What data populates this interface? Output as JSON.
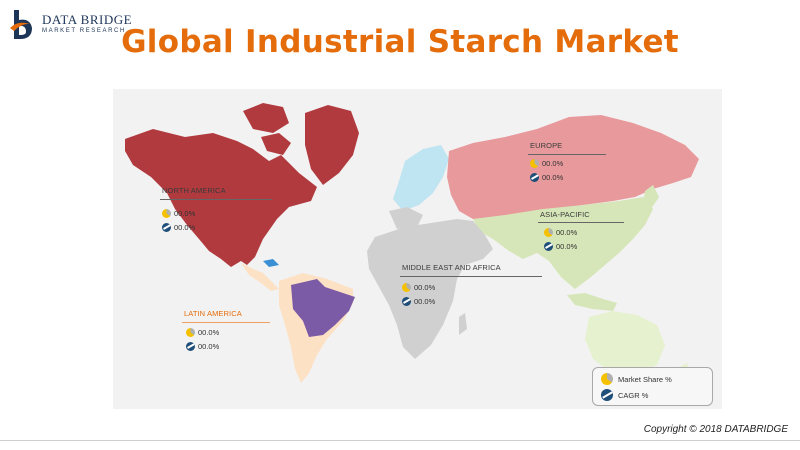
{
  "brand": {
    "name": "DATA BRIDGE",
    "tagline": "MARKET RESEARCH",
    "logo_colors": {
      "primary": "#1d3557",
      "accent": "#e46c0a"
    }
  },
  "title": "Global Industrial Starch Market",
  "regions": [
    {
      "key": "north_america",
      "name": "NORTH AMERICA",
      "market_share": "00.0%",
      "cagr": "00.0%",
      "color": "#b13a3f"
    },
    {
      "key": "europe",
      "name": "EUROPE",
      "market_share": "00.0%",
      "cagr": "00.0%",
      "color": "#e8999c"
    },
    {
      "key": "asia_pacific",
      "name": "ASIA-PACIFIC",
      "market_share": "00.0%",
      "cagr": "00.0%",
      "color": "#d6e6b8"
    },
    {
      "key": "middle_east_africa",
      "name": "MIDDLE EAST AND AFRICA",
      "market_share": "00.0%",
      "cagr": "00.0%",
      "color": "#d0d0d0"
    },
    {
      "key": "latin_america",
      "name": "LATIN AMERICA",
      "market_share": "00.0%",
      "cagr": "00.0%",
      "color": "#fde1c4",
      "highlight_color": "#7b5aa6"
    }
  ],
  "legend": {
    "market_share_label": "Market Share %",
    "cagr_label": "CAGR %"
  },
  "copyright": "Copyright © 2018 DATABRIDGE",
  "colors": {
    "title": "#e46c0a",
    "map_background": "#f2f2f2",
    "scandinavia": "#bfe4f2",
    "australia": "#e6f1cf",
    "share_icon": "#f5c000",
    "cagr_icon": "#1f4e79"
  }
}
